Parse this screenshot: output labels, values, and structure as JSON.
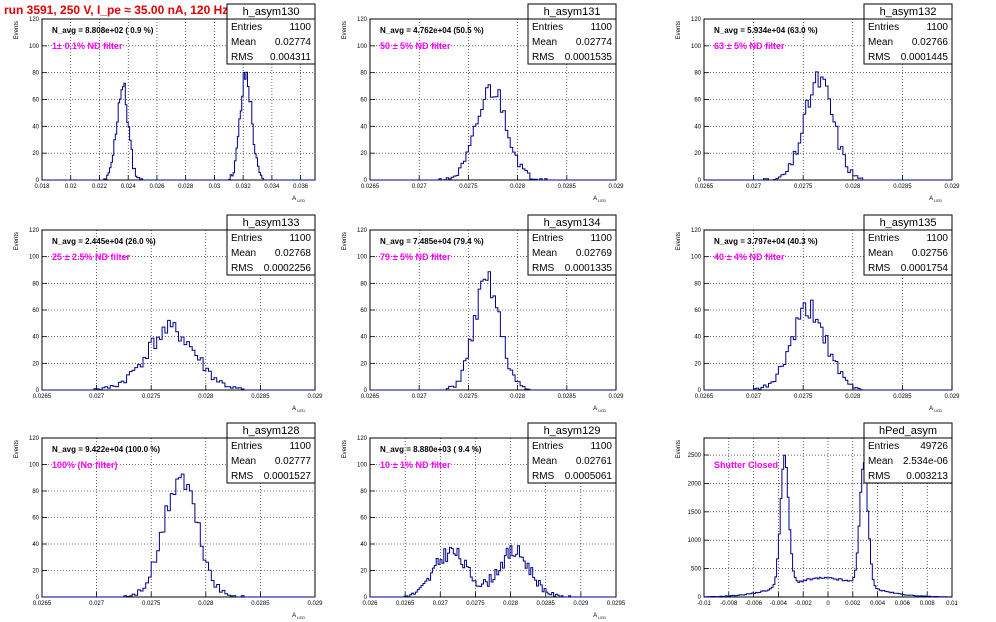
{
  "page_title": "run 3591,   250 V, I_pe ≈ 35.00 nA, 120 Hz",
  "chart_data": [
    {
      "type": "bar",
      "name": "h_asym130",
      "navg": "N_avg = 8.808e+02 ( 0.9 %)",
      "note": "1± 0.1% ND filter",
      "stats": [
        [
          "Entries",
          "1100"
        ],
        [
          "Mean",
          "0.02774"
        ],
        [
          "RMS",
          "0.004311"
        ]
      ],
      "xlim": [
        0.018,
        0.037
      ],
      "ylim": [
        0,
        120
      ],
      "xticks": [
        "0.018",
        "0.02",
        "0.022",
        "0.024",
        "0.026",
        "0.028",
        "0.03",
        "0.032",
        "0.034",
        "0.036"
      ],
      "yticks": [
        "0",
        "20",
        "40",
        "60",
        "80",
        "100",
        "120"
      ],
      "xlabel": "A_{LED}",
      "ylabel": "Events",
      "peaks": [
        {
          "center": 0.0236,
          "sigma": 0.0004,
          "amp": 70
        },
        {
          "center": 0.0322,
          "sigma": 0.0004,
          "amp": 78
        }
      ],
      "nbins": 190,
      "seed": 11
    },
    {
      "type": "bar",
      "name": "h_asym131",
      "navg": "N_avg = 4.762e+04 (50.5 %)",
      "note": "50 ± 5% ND filter",
      "stats": [
        [
          "Entries",
          "1100"
        ],
        [
          "Mean",
          "0.02774"
        ],
        [
          "RMS",
          "0.0001535"
        ]
      ],
      "xlim": [
        0.0265,
        0.029
      ],
      "ylim": [
        0,
        120
      ],
      "xticks": [
        "0.0265",
        "0.027",
        "0.0275",
        "0.028",
        "0.0285",
        "0.029"
      ],
      "yticks": [
        "0",
        "20",
        "40",
        "60",
        "80",
        "100",
        "120"
      ],
      "xlabel": "A_{LED}",
      "ylabel": "Events",
      "peaks": [
        {
          "center": 0.02774,
          "sigma": 0.000153,
          "amp": 68
        }
      ],
      "nbins": 100,
      "seed": 21
    },
    {
      "type": "bar",
      "name": "h_asym132",
      "navg": "N_avg = 5.934e+04 (63.0 %)",
      "note": "63 ± 5% ND filter",
      "stats": [
        [
          "Entries",
          "1100"
        ],
        [
          "Mean",
          "0.02766"
        ],
        [
          "RMS",
          "0.0001445"
        ]
      ],
      "xlim": [
        0.0265,
        0.029
      ],
      "ylim": [
        0,
        120
      ],
      "xticks": [
        "0.0265",
        "0.027",
        "0.0275",
        "0.028",
        "0.0285",
        "0.029"
      ],
      "yticks": [
        "0",
        "20",
        "40",
        "60",
        "80",
        "100",
        "120"
      ],
      "xlabel": "A_{LED}",
      "ylabel": "Events",
      "peaks": [
        {
          "center": 0.02766,
          "sigma": 0.000145,
          "amp": 74
        }
      ],
      "nbins": 100,
      "seed": 31
    },
    {
      "type": "bar",
      "name": "h_asym133",
      "navg": "N_avg = 2.445e+04 (26.0 %)",
      "note": "25 ± 2.5% ND filter",
      "stats": [
        [
          "Entries",
          "1100"
        ],
        [
          "Mean",
          "0.02768"
        ],
        [
          "RMS",
          "0.0002256"
        ]
      ],
      "xlim": [
        0.0265,
        0.029
      ],
      "ylim": [
        0,
        120
      ],
      "xticks": [
        "0.0265",
        "0.027",
        "0.0275",
        "0.028",
        "0.0285",
        "0.029"
      ],
      "yticks": [
        "0",
        "20",
        "40",
        "60",
        "80",
        "100",
        "120"
      ],
      "xlabel": "A_{LED}",
      "ylabel": "Events",
      "peaks": [
        {
          "center": 0.02768,
          "sigma": 0.000225,
          "amp": 45
        }
      ],
      "nbins": 100,
      "seed": 41
    },
    {
      "type": "bar",
      "name": "h_asym134",
      "navg": "N_avg = 7.485e+04 (79.4 %)",
      "note": "79 ± 5% ND filter",
      "stats": [
        [
          "Entries",
          "1100"
        ],
        [
          "Mean",
          "0.02769"
        ],
        [
          "RMS",
          "0.0001335"
        ]
      ],
      "xlim": [
        0.0265,
        0.029
      ],
      "ylim": [
        0,
        120
      ],
      "xticks": [
        "0.0265",
        "0.027",
        "0.0275",
        "0.028",
        "0.0285",
        "0.029"
      ],
      "yticks": [
        "0",
        "20",
        "40",
        "60",
        "80",
        "100",
        "120"
      ],
      "xlabel": "A_{LED}",
      "ylabel": "Events",
      "peaks": [
        {
          "center": 0.02769,
          "sigma": 0.000133,
          "amp": 80
        }
      ],
      "nbins": 100,
      "seed": 51
    },
    {
      "type": "bar",
      "name": "h_asym135",
      "navg": "N_avg = 3.797e+04 (40.3 %)",
      "note": "40 ± 4% ND filter",
      "stats": [
        [
          "Entries",
          "1100"
        ],
        [
          "Mean",
          "0.02756"
        ],
        [
          "RMS",
          "0.0001754"
        ]
      ],
      "xlim": [
        0.0265,
        0.029
      ],
      "ylim": [
        0,
        120
      ],
      "xticks": [
        "0.0265",
        "0.027",
        "0.0275",
        "0.028",
        "0.0285",
        "0.029"
      ],
      "yticks": [
        "0",
        "20",
        "40",
        "60",
        "80",
        "100",
        "120"
      ],
      "xlabel": "A_{LED}",
      "ylabel": "Events",
      "peaks": [
        {
          "center": 0.02756,
          "sigma": 0.000175,
          "amp": 60
        }
      ],
      "nbins": 100,
      "seed": 61
    },
    {
      "type": "bar",
      "name": "h_asym128",
      "navg": "N_avg = 9.422e+04 (100.0 %)",
      "note": "100% (No filter)",
      "stats": [
        [
          "Entries",
          "1100"
        ],
        [
          "Mean",
          "0.02777"
        ],
        [
          "RMS",
          "0.0001527"
        ]
      ],
      "xlim": [
        0.0265,
        0.029
      ],
      "ylim": [
        0,
        120
      ],
      "xticks": [
        "0.0265",
        "0.027",
        "0.0275",
        "0.028",
        "0.0285",
        "0.029"
      ],
      "yticks": [
        "0",
        "20",
        "40",
        "60",
        "80",
        "100",
        "120"
      ],
      "xlabel": "A_{LED}",
      "ylabel": "Events",
      "peaks": [
        {
          "center": 0.02777,
          "sigma": 0.000152,
          "amp": 90
        }
      ],
      "nbins": 100,
      "seed": 71
    },
    {
      "type": "bar",
      "name": "h_asym129",
      "navg": "N_avg = 8.880e+03 ( 9.4 %)",
      "note": "10 ± 1% ND filter",
      "stats": [
        [
          "Entries",
          "1100"
        ],
        [
          "Mean",
          "0.02761"
        ],
        [
          "RMS",
          "0.0005061"
        ]
      ],
      "xlim": [
        0.026,
        0.0295
      ],
      "ylim": [
        0,
        120
      ],
      "xticks": [
        "0.026",
        "0.0265",
        "0.027",
        "0.0275",
        "0.028",
        "0.0285",
        "0.029",
        "0.0295"
      ],
      "yticks": [
        "0",
        "20",
        "40",
        "60",
        "80",
        "100",
        "120"
      ],
      "xlabel": "A_{LED}",
      "ylabel": "Events",
      "peaks": [
        {
          "center": 0.02715,
          "sigma": 0.00023,
          "amp": 34
        },
        {
          "center": 0.02805,
          "sigma": 0.00023,
          "amp": 34
        }
      ],
      "nbins": 130,
      "seed": 81
    },
    {
      "type": "bar",
      "name": "hPed_asym",
      "navg": "",
      "note": "Shutter Closed",
      "stats": [
        [
          "Entries",
          "49726"
        ],
        [
          "Mean",
          "2.534e-06"
        ],
        [
          "RMS",
          "0.003213"
        ]
      ],
      "xlim": [
        -0.01,
        0.01
      ],
      "ylim": [
        0,
        2800
      ],
      "xticks": [
        "-0.01",
        "-0.008",
        "-0.006",
        "-0.004",
        "-0.002",
        "0",
        "0.002",
        "0.004",
        "0.006",
        "0.008",
        "0.01"
      ],
      "yticks": [
        "0",
        "500",
        "1000",
        "1500",
        "2000",
        "2500"
      ],
      "xlabel": "",
      "ylabel": "Events",
      "peaks": [
        {
          "center": -0.0035,
          "sigma": 0.00033,
          "amp": 2250
        },
        {
          "center": 0.0029,
          "sigma": 0.00033,
          "amp": 2150
        },
        {
          "center": -0.0003,
          "sigma": 0.0032,
          "amp": 330
        }
      ],
      "nbins": 140,
      "seed": 91
    }
  ]
}
